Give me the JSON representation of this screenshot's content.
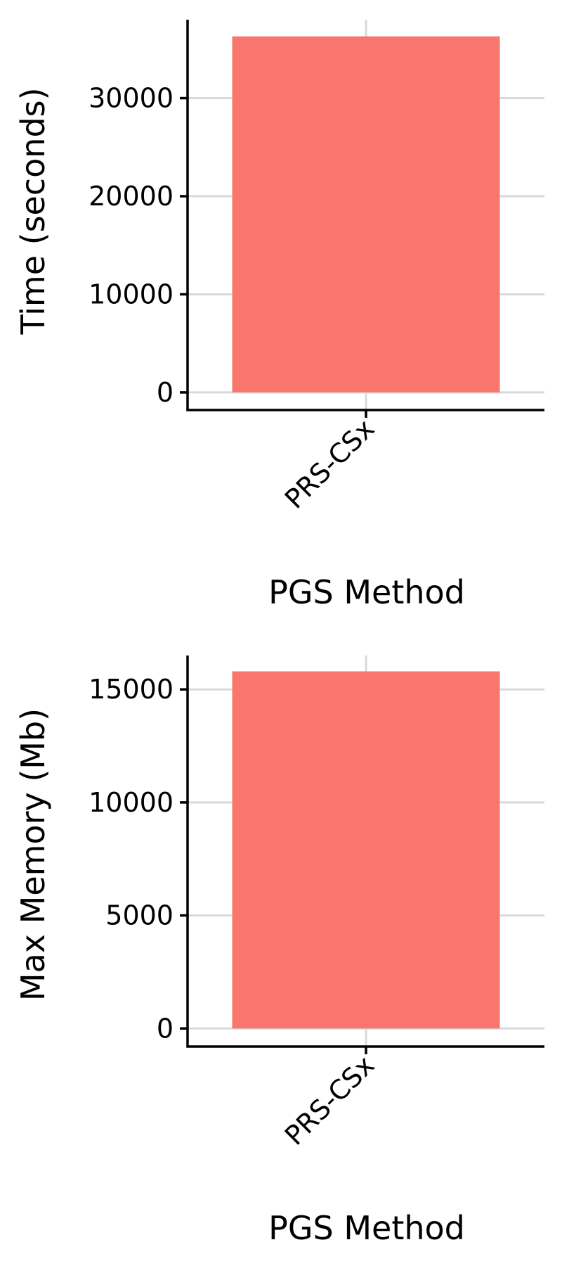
{
  "colors": {
    "bar": "#F8766D",
    "grid": "#D9D9D9",
    "axis": "#000000",
    "background": "#FFFFFF"
  },
  "chart_data": [
    {
      "type": "bar",
      "categories": [
        "PRS-CSx"
      ],
      "values": [
        36300
      ],
      "xlabel": "PGS Method",
      "ylabel": "Time (seconds)",
      "yticks": [
        0,
        10000,
        20000,
        30000
      ],
      "ylim": [
        -1800,
        38000
      ],
      "grid": true
    },
    {
      "type": "bar",
      "categories": [
        "PRS-CSx"
      ],
      "values": [
        15800
      ],
      "xlabel": "PGS Method",
      "ylabel": "Max Memory (Mb)",
      "yticks": [
        0,
        5000,
        10000,
        15000
      ],
      "ylim": [
        -800,
        16500
      ],
      "grid": true
    }
  ]
}
